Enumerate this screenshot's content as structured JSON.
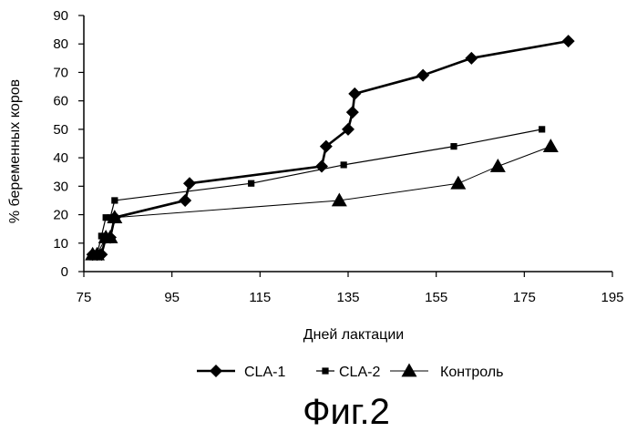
{
  "chart_data": {
    "type": "line",
    "title": "",
    "xlabel": "Дней лактации",
    "ylabel": "% беременных коров",
    "xlim": [
      75,
      195
    ],
    "ylim": [
      0,
      90
    ],
    "x_ticks": [
      75,
      95,
      115,
      135,
      155,
      175,
      195
    ],
    "y_ticks": [
      0,
      10,
      20,
      30,
      40,
      50,
      60,
      70,
      80,
      90
    ],
    "grid": false,
    "legend_position": "bottom",
    "series": [
      {
        "name": "CLA-1",
        "marker": "diamond",
        "color": "#000000",
        "x": [
          77,
          78,
          79,
          80,
          81,
          82,
          98,
          99,
          129,
          130,
          135,
          136,
          136.5,
          152,
          163,
          185
        ],
        "y": [
          6,
          6,
          6,
          12,
          12,
          19,
          25,
          31,
          37,
          44,
          50,
          56,
          62.5,
          69,
          75,
          81
        ]
      },
      {
        "name": "CLA-2",
        "marker": "square",
        "color": "#000000",
        "x": [
          77,
          78,
          79,
          80,
          81,
          82,
          113,
          134,
          159,
          179
        ],
        "y": [
          6,
          6,
          12.5,
          19,
          19,
          25,
          31,
          37.5,
          44,
          50
        ]
      },
      {
        "name": "Контроль",
        "marker": "triangle",
        "color": "#000000",
        "x": [
          77,
          78,
          80,
          81,
          82,
          133,
          160,
          169,
          181
        ],
        "y": [
          6,
          6,
          12,
          12,
          19,
          25,
          31,
          37,
          44
        ]
      }
    ]
  },
  "caption": "Фиг.2"
}
